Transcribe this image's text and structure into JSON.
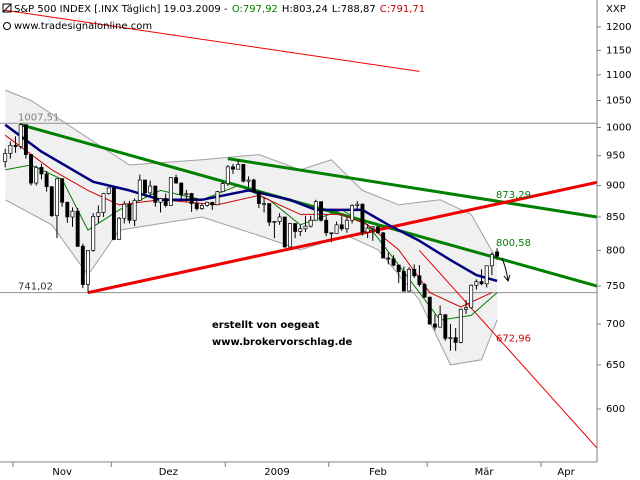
{
  "chart_data": {
    "type": "candlestick",
    "title": "S&P 500 INDEX [.INX  Täglich] 19.03.2009 -",
    "ohlc_labels": {
      "texts": [
        "O:797,92",
        "H:803,24",
        "L:788,87",
        "C:791,71"
      ],
      "colors": [
        "#008000",
        "#000000",
        "#000000",
        "#c00000"
      ]
    },
    "source": "www.tradesignalonline.com",
    "axis_label": "XXP",
    "watermark": [
      "erstellt von oegeat",
      "www.brokervorschlag.de"
    ],
    "watermark_color": "#00008b",
    "log_scale": true,
    "ylim": [
      545,
      1260
    ],
    "yticks": [
      600,
      650,
      700,
      750,
      800,
      850,
      900,
      950,
      1000,
      1050,
      1100,
      1150,
      1200
    ],
    "xlim": [
      -1,
      114.3
    ],
    "xticks": [
      {
        "value": 2,
        "label": "Nov"
      },
      {
        "value": 21,
        "label": "Dez"
      },
      {
        "value": 43,
        "label": "2009"
      },
      {
        "value": 63,
        "label": "Feb"
      },
      {
        "value": 82,
        "label": "Mär"
      },
      {
        "value": 104,
        "label": "Apr"
      }
    ],
    "open": [
      940,
      954,
      968,
      966,
      1005,
      952,
      904,
      930,
      919,
      898,
      852,
      911,
      873,
      850,
      859,
      806,
      752,
      800,
      851,
      857,
      887,
      896,
      816,
      848,
      870,
      845,
      876,
      909,
      888,
      899,
      873,
      879,
      868,
      913,
      904,
      885,
      887,
      871,
      863,
      868,
      873,
      869,
      890,
      903,
      931,
      927,
      935,
      907,
      909,
      890,
      871,
      871,
      842,
      843,
      850,
      805,
      840,
      828,
      832,
      836,
      845,
      874,
      845,
      826,
      825,
      838,
      832,
      845,
      868,
      870,
      827,
      833,
      835,
      826,
      789,
      788,
      779,
      770,
      743,
      773,
      764,
      752,
      735,
      700,
      696,
      712,
      682,
      683,
      677,
      719,
      721,
      751,
      756,
      753,
      778,
      797.92
    ],
    "high": [
      962,
      975,
      984,
      1007.51,
      1005,
      952,
      933,
      936,
      924,
      899,
      912,
      912,
      874,
      865,
      864,
      810,
      800,
      856,
      868,
      888,
      897,
      896,
      850,
      875,
      875,
      879,
      918,
      909,
      908,
      900,
      880,
      887,
      914,
      918,
      905,
      893,
      888,
      880,
      871,
      874,
      873,
      891,
      906,
      934,
      936,
      943,
      935,
      915,
      911,
      890,
      881,
      871,
      844,
      856,
      850,
      841,
      840,
      838,
      852,
      852,
      877,
      874,
      851,
      826,
      843,
      851,
      850,
      870,
      875,
      871,
      839,
      836,
      835,
      827,
      797,
      793,
      779,
      777,
      776,
      780,
      779,
      754,
      735,
      712,
      724,
      712,
      700,
      695,
      720,
      731,
      752,
      759,
      773,
      778,
      797,
      803.24
    ],
    "low": [
      930,
      945,
      955,
      962,
      945,
      900,
      900,
      910,
      890,
      850,
      818,
      866,
      841,
      835,
      805,
      747,
      741.02,
      798,
      841,
      850,
      885,
      815,
      817,
      840,
      840,
      836,
      876,
      882,
      884,
      866,
      857,
      865,
      868,
      903,
      878,
      874,
      858,
      860,
      861,
      866,
      861,
      869,
      889,
      899,
      919,
      927,
      905,
      897,
      888,
      864,
      857,
      836,
      818,
      838,
      804,
      805,
      818,
      821,
      827,
      834,
      845,
      843,
      821,
      812,
      825,
      829,
      826,
      840,
      862,
      822,
      818,
      814,
      825,
      789,
      780,
      777,
      754,
      743,
      742,
      761,
      749,
      734,
      699,
      692,
      696,
      679,
      667,
      666.79,
      676,
      713,
      720,
      745,
      751,
      748,
      765,
      788.87
    ],
    "close": [
      954,
      968,
      966,
      1005,
      952,
      904,
      930,
      919,
      898,
      852,
      911,
      873,
      850,
      859,
      806,
      752,
      800,
      851,
      857,
      887,
      896,
      816,
      848,
      870,
      845,
      876,
      909,
      888,
      899,
      873,
      879,
      868,
      913,
      904,
      885,
      887,
      871,
      863,
      868,
      873,
      869,
      890,
      903,
      931,
      927,
      935,
      907,
      909,
      890,
      871,
      871,
      842,
      843,
      850,
      805,
      840,
      828,
      832,
      836,
      845,
      874,
      845,
      826,
      825,
      838,
      832,
      845,
      868,
      870,
      827,
      833,
      835,
      826,
      789,
      788,
      779,
      770,
      743,
      773,
      764,
      752,
      735,
      700,
      696,
      712,
      682,
      683,
      677,
      719,
      721,
      751,
      756,
      753,
      778,
      794,
      791.71
    ],
    "up_color": "#ffffff",
    "down_color": "#000000",
    "band": {
      "color": "#a0a0a0",
      "fill": "#f0f0f0",
      "upper_x": [
        0,
        5,
        18,
        24,
        38,
        49,
        57,
        63,
        69,
        76,
        84,
        90,
        95
      ],
      "upper": [
        1070,
        1050,
        969,
        934,
        943,
        952,
        926,
        943,
        892,
        869,
        877,
        854,
        786
      ],
      "lower_x": [
        0,
        9,
        16,
        22,
        38,
        49,
        57,
        66,
        72,
        80,
        86,
        92,
        95
      ],
      "lower": [
        877,
        838,
        765,
        830,
        850,
        822,
        801,
        822,
        801,
        731,
        650,
        656,
        705
      ]
    },
    "lines": [
      {
        "color": "#008000",
        "width": 1,
        "x": [
          0,
          5,
          11,
          16,
          22,
          30,
          38,
          45,
          51,
          57,
          65,
          70,
          76,
          84,
          90,
          95
        ],
        "values": [
          926,
          934,
          910,
          830,
          861,
          892,
          877,
          900,
          877,
          838,
          861,
          838,
          779,
          705,
          711,
          741
        ]
      },
      {
        "color": "#cc0000",
        "width": 1,
        "x": [
          0,
          9,
          16,
          22,
          30,
          41,
          49,
          57,
          65,
          70,
          76,
          82,
          88,
          94
        ],
        "values": [
          986,
          926,
          892,
          869,
          877,
          869,
          884,
          854,
          854,
          838,
          801,
          741,
          722,
          741
        ]
      },
      {
        "color": "#000080",
        "width": 2.5,
        "x": [
          0,
          7,
          17,
          24,
          30,
          38,
          47,
          55,
          60,
          69,
          74,
          80,
          86,
          91,
          95
        ],
        "values": [
          1005,
          957,
          906,
          892,
          877,
          877,
          892,
          877,
          861,
          861,
          838,
          814,
          786,
          765,
          757
        ]
      }
    ],
    "trendlines": [
      {
        "color": "#008000",
        "width": 3,
        "x": [
          3,
          114.3
        ],
        "values": [
          1005,
          750
        ]
      },
      {
        "color": "#008000",
        "width": 3,
        "x": [
          43,
          114.3
        ],
        "values": [
          945,
          850
        ]
      },
      {
        "color": "#ee0000",
        "width": 3,
        "x": [
          16,
          114.3
        ],
        "values": [
          741,
          905
        ]
      },
      {
        "color": "#ee0000",
        "width": 1,
        "x": [
          0,
          80
        ],
        "values": [
          1237,
          1107
        ]
      },
      {
        "color": "#ee0000",
        "width": 1,
        "x": [
          80,
          114.3
        ],
        "values": [
          800,
          559
        ]
      }
    ],
    "levels": {
      "values": [
        1007.51,
        741.02
      ],
      "value_labels": [
        "1007,51",
        "741,02"
      ],
      "colors": [
        "#808080",
        "#303030"
      ]
    },
    "annotations": {
      "values": [
        873.29,
        800.58,
        672.96
      ],
      "value_labels": [
        "873,29",
        "800,58",
        "672,96"
      ],
      "colors": [
        "#008000",
        "#008000",
        "#cc0000"
      ]
    }
  }
}
